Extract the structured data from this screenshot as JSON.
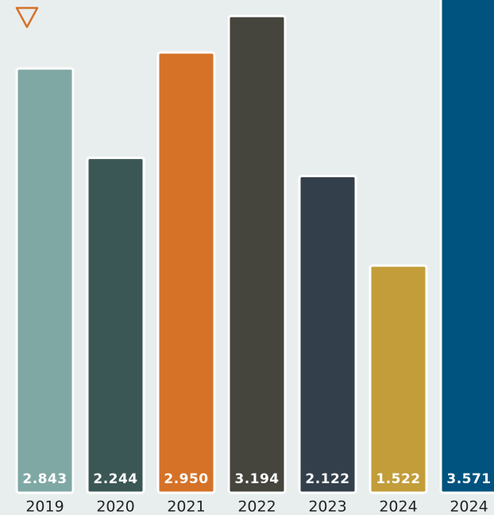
{
  "chart_data": {
    "type": "bar",
    "categories": [
      "2019",
      "2020",
      "2021",
      "2022",
      "2023",
      "2024",
      "2024"
    ],
    "values": [
      2.843,
      2.244,
      2.95,
      3.194,
      2.122,
      1.522,
      3.571
    ],
    "value_labels": [
      "2.843",
      "2.244",
      "2.950",
      "3.194",
      "2.122",
      "1.522",
      "3.571"
    ],
    "colors": [
      "#7fa8a5",
      "#3b5755",
      "#d57228",
      "#45443d",
      "#333f4b",
      "#c29d3a",
      "#00527f"
    ]
  }
}
